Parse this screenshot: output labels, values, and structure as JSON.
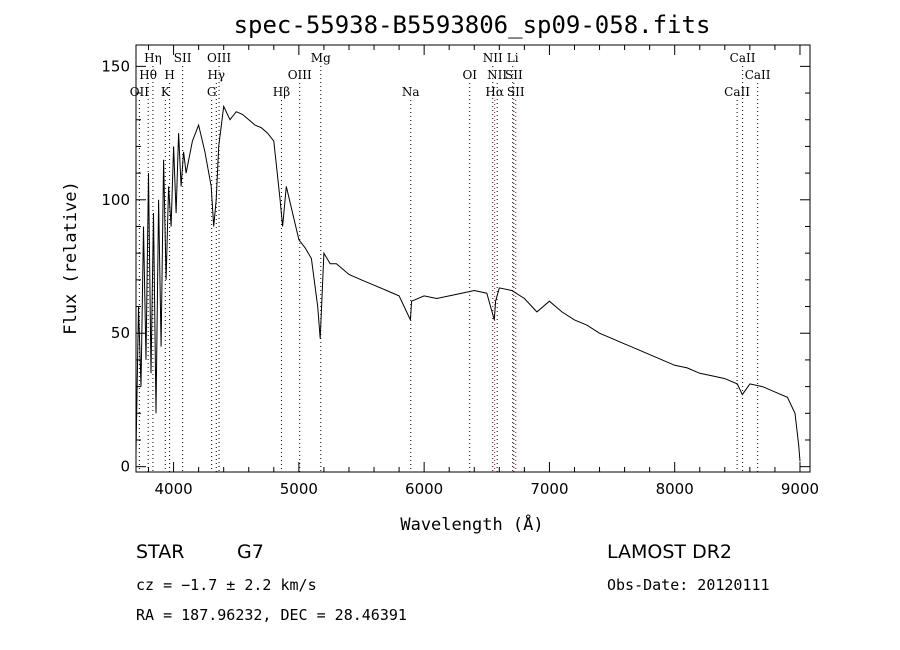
{
  "chart_data": {
    "type": "line",
    "title": "spec-55938-B5593806_sp09-058.fits",
    "xlabel": "Wavelength (Å)",
    "ylabel": "Flux (relative)",
    "xlim": [
      3700,
      9080
    ],
    "ylim": [
      -2,
      158
    ],
    "xticks": [
      4000,
      5000,
      6000,
      7000,
      8000,
      9000
    ],
    "yticks": [
      0,
      50,
      100,
      150
    ],
    "grid": false,
    "series": [
      {
        "values_note": "",
        "x": [
          3700,
          3720,
          3740,
          3760,
          3780,
          3800,
          3820,
          3840,
          3860,
          3880,
          3900,
          3920,
          3940,
          3960,
          3980,
          4000,
          4020,
          4040,
          4060,
          4080,
          4100,
          4150,
          4200,
          4250,
          4300,
          4320,
          4340,
          4360,
          4400,
          4450,
          4500,
          4550,
          4600,
          4650,
          4700,
          4750,
          4800,
          4850,
          4870,
          4900,
          4950,
          5000,
          5050,
          5100,
          5150,
          5170,
          5200,
          5250,
          5300,
          5400,
          5500,
          5600,
          5700,
          5800,
          5890,
          5900,
          6000,
          6100,
          6200,
          6300,
          6400,
          6500,
          6560,
          6570,
          6600,
          6700,
          6800,
          6900,
          7000,
          7100,
          7200,
          7300,
          7400,
          7500,
          7600,
          7700,
          7800,
          7900,
          8000,
          8100,
          8200,
          8300,
          8400,
          8500,
          8540,
          8600,
          8700,
          8800,
          8900,
          8960,
          8990,
          9000
        ],
        "y": [
          5,
          60,
          30,
          90,
          40,
          110,
          35,
          95,
          20,
          100,
          45,
          115,
          70,
          105,
          90,
          120,
          95,
          125,
          105,
          118,
          110,
          122,
          128,
          118,
          105,
          90,
          100,
          120,
          135,
          130,
          133,
          132,
          130,
          128,
          127,
          125,
          122,
          100,
          90,
          105,
          95,
          85,
          82,
          78,
          60,
          48,
          80,
          76,
          76,
          72,
          70,
          68,
          66,
          64,
          55,
          62,
          64,
          63,
          64,
          65,
          66,
          65,
          55,
          62,
          67,
          66,
          63,
          58,
          62,
          58,
          55,
          53,
          50,
          48,
          46,
          44,
          42,
          40,
          38,
          37,
          35,
          34,
          33,
          31,
          27,
          31,
          30,
          28,
          26,
          20,
          8,
          2
        ]
      }
    ],
    "lines": [
      {
        "label": "Hη",
        "wave": 3835,
        "row": 1,
        "color": "#000000"
      },
      {
        "label": "Hθ",
        "wave": 3797,
        "row": 2,
        "color": "#000000"
      },
      {
        "label": "OII",
        "wave": 3727,
        "row": 3,
        "color": "#000000"
      },
      {
        "label": "SII",
        "wave": 4072,
        "row": 1,
        "color": "#000000"
      },
      {
        "label": "H",
        "wave": 3968,
        "row": 2,
        "color": "#000000"
      },
      {
        "label": "K",
        "wave": 3934,
        "row": 3,
        "color": "#000000"
      },
      {
        "label": "OIII",
        "wave": 4363,
        "row": 1,
        "color": "#000000"
      },
      {
        "label": "Hγ",
        "wave": 4341,
        "row": 2,
        "color": "#000000"
      },
      {
        "label": "G",
        "wave": 4304,
        "row": 3,
        "color": "#000000"
      },
      {
        "label": "Mg",
        "wave": 5175,
        "row": 1,
        "color": "#000000"
      },
      {
        "label": "OIII",
        "wave": 5007,
        "row": 2,
        "color": "#000000"
      },
      {
        "label": "Hβ",
        "wave": 4861,
        "row": 3,
        "color": "#000000"
      },
      {
        "label": "Na",
        "wave": 5893,
        "row": 3,
        "color": "#000000"
      },
      {
        "label": "NII",
        "wave": 6548,
        "row": 1,
        "color": "#000000"
      },
      {
        "label": "Li",
        "wave": 6707,
        "row": 1,
        "color": "#000000"
      },
      {
        "label": "OI",
        "wave": 6364,
        "row": 2,
        "color": "#000000"
      },
      {
        "label": "NII",
        "wave": 6583,
        "row": 2,
        "color": "#000000"
      },
      {
        "label": "SII",
        "wave": 6716,
        "row": 2,
        "color": "#000000"
      },
      {
        "label": "Hα",
        "wave": 6563,
        "row": 3,
        "color": "#cc0000"
      },
      {
        "label": "SII",
        "wave": 6731,
        "row": 3,
        "color": "#cc0000"
      },
      {
        "label": "CaII",
        "wave": 8542,
        "row": 1,
        "color": "#000000"
      },
      {
        "label": "CaII",
        "wave": 8662,
        "row": 2,
        "color": "#000000"
      },
      {
        "label": "CaII",
        "wave": 8498,
        "row": 3,
        "color": "#000000"
      }
    ]
  },
  "info": {
    "class_label": "STAR",
    "subclass": "G7",
    "survey": "LAMOST DR2",
    "cz": "cz = −1.7 ± 2.2 km/s",
    "obs_date": "Obs-Date: 20120111",
    "coords": "RA = 187.96232, DEC =  28.46391"
  }
}
